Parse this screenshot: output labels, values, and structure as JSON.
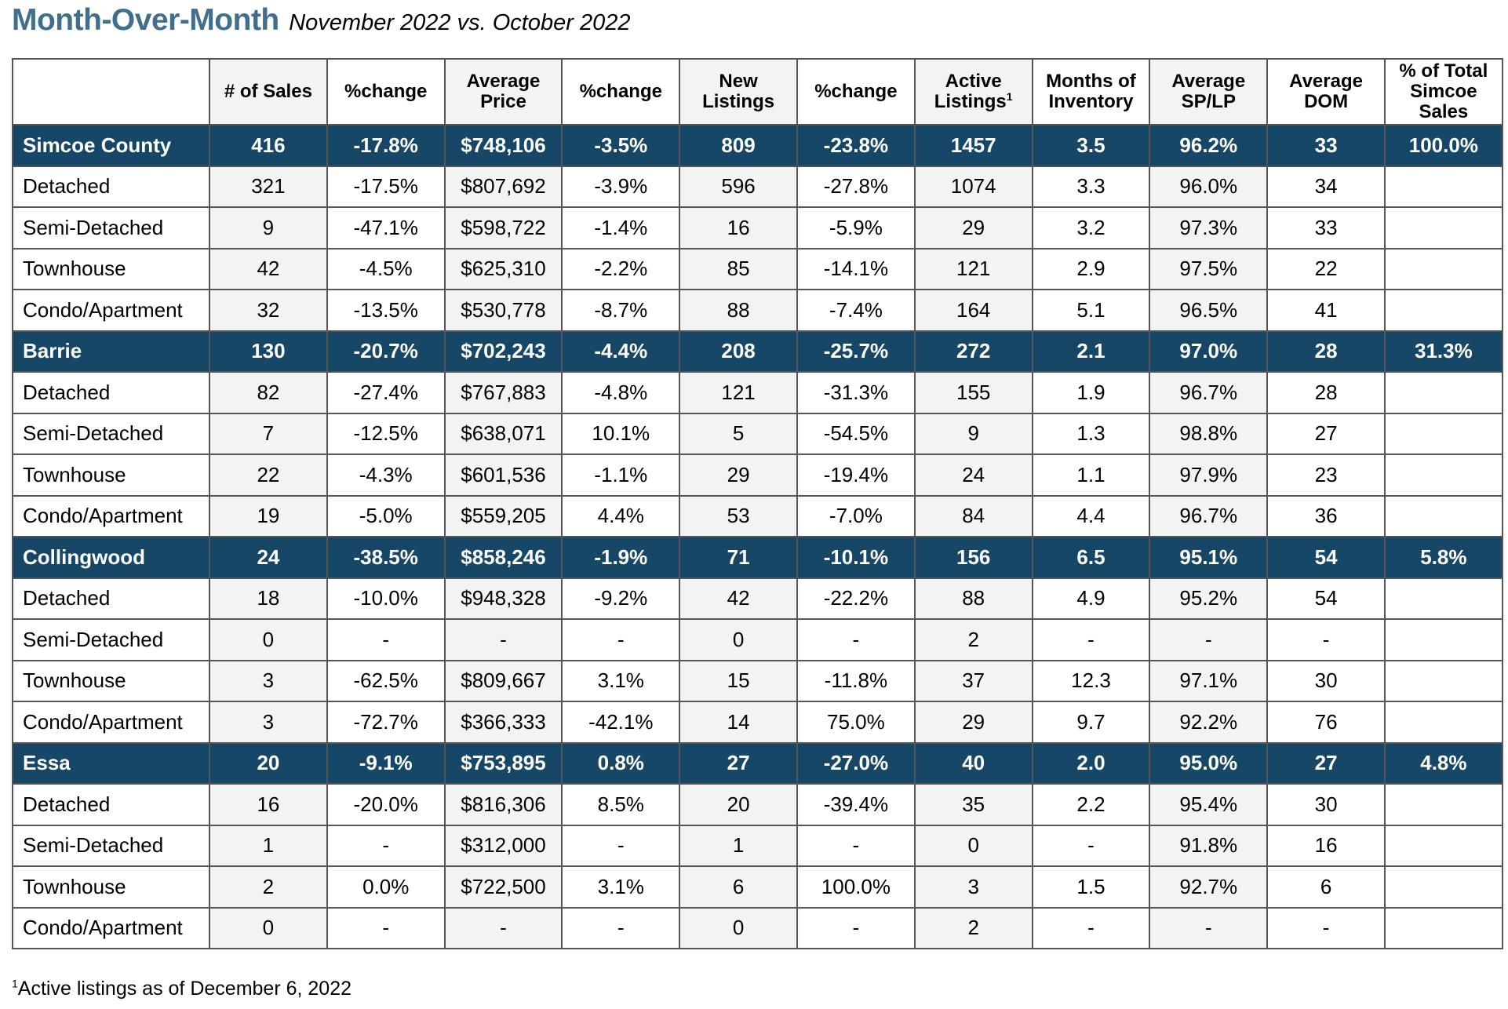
{
  "heading": {
    "title": "Month-Over-Month",
    "subtitle": "November 2022 vs. October 2022"
  },
  "table": {
    "columns": [
      {
        "label": "",
        "sup": ""
      },
      {
        "label": "# of Sales",
        "sup": ""
      },
      {
        "label": "%change",
        "sup": ""
      },
      {
        "label": "Average Price",
        "sup": ""
      },
      {
        "label": "%change",
        "sup": ""
      },
      {
        "label": "New Listings",
        "sup": ""
      },
      {
        "label": "%change",
        "sup": ""
      },
      {
        "label": "Active Listings",
        "sup": "1"
      },
      {
        "label": "Months of Inventory",
        "sup": ""
      },
      {
        "label": "Average SP/LP",
        "sup": ""
      },
      {
        "label": "Average DOM",
        "sup": ""
      },
      {
        "label": "% of Total Simcoe Sales",
        "sup": ""
      }
    ],
    "rows": [
      {
        "region": true,
        "cells": [
          "Simcoe County",
          "416",
          "-17.8%",
          "$748,106",
          "-3.5%",
          "809",
          "-23.8%",
          "1457",
          "3.5",
          "96.2%",
          "33",
          "100.0%"
        ]
      },
      {
        "region": false,
        "cells": [
          "Detached",
          "321",
          "-17.5%",
          "$807,692",
          "-3.9%",
          "596",
          "-27.8%",
          "1074",
          "3.3",
          "96.0%",
          "34",
          ""
        ]
      },
      {
        "region": false,
        "cells": [
          "Semi-Detached",
          "9",
          "-47.1%",
          "$598,722",
          "-1.4%",
          "16",
          "-5.9%",
          "29",
          "3.2",
          "97.3%",
          "33",
          ""
        ]
      },
      {
        "region": false,
        "cells": [
          "Townhouse",
          "42",
          "-4.5%",
          "$625,310",
          "-2.2%",
          "85",
          "-14.1%",
          "121",
          "2.9",
          "97.5%",
          "22",
          ""
        ]
      },
      {
        "region": false,
        "cells": [
          "Condo/Apartment",
          "32",
          "-13.5%",
          "$530,778",
          "-8.7%",
          "88",
          "-7.4%",
          "164",
          "5.1",
          "96.5%",
          "41",
          ""
        ]
      },
      {
        "region": true,
        "cells": [
          "Barrie",
          "130",
          "-20.7%",
          "$702,243",
          "-4.4%",
          "208",
          "-25.7%",
          "272",
          "2.1",
          "97.0%",
          "28",
          "31.3%"
        ]
      },
      {
        "region": false,
        "cells": [
          "Detached",
          "82",
          "-27.4%",
          "$767,883",
          "-4.8%",
          "121",
          "-31.3%",
          "155",
          "1.9",
          "96.7%",
          "28",
          ""
        ]
      },
      {
        "region": false,
        "cells": [
          "Semi-Detached",
          "7",
          "-12.5%",
          "$638,071",
          "10.1%",
          "5",
          "-54.5%",
          "9",
          "1.3",
          "98.8%",
          "27",
          ""
        ]
      },
      {
        "region": false,
        "cells": [
          "Townhouse",
          "22",
          "-4.3%",
          "$601,536",
          "-1.1%",
          "29",
          "-19.4%",
          "24",
          "1.1",
          "97.9%",
          "23",
          ""
        ]
      },
      {
        "region": false,
        "cells": [
          "Condo/Apartment",
          "19",
          "-5.0%",
          "$559,205",
          "4.4%",
          "53",
          "-7.0%",
          "84",
          "4.4",
          "96.7%",
          "36",
          ""
        ]
      },
      {
        "region": true,
        "cells": [
          "Collingwood",
          "24",
          "-38.5%",
          "$858,246",
          "-1.9%",
          "71",
          "-10.1%",
          "156",
          "6.5",
          "95.1%",
          "54",
          "5.8%"
        ]
      },
      {
        "region": false,
        "cells": [
          "Detached",
          "18",
          "-10.0%",
          "$948,328",
          "-9.2%",
          "42",
          "-22.2%",
          "88",
          "4.9",
          "95.2%",
          "54",
          ""
        ]
      },
      {
        "region": false,
        "cells": [
          "Semi-Detached",
          "0",
          "-",
          "-",
          "-",
          "0",
          "-",
          "2",
          "-",
          "-",
          "-",
          ""
        ]
      },
      {
        "region": false,
        "cells": [
          "Townhouse",
          "3",
          "-62.5%",
          "$809,667",
          "3.1%",
          "15",
          "-11.8%",
          "37",
          "12.3",
          "97.1%",
          "30",
          ""
        ]
      },
      {
        "region": false,
        "cells": [
          "Condo/Apartment",
          "3",
          "-72.7%",
          "$366,333",
          "-42.1%",
          "14",
          "75.0%",
          "29",
          "9.7",
          "92.2%",
          "76",
          ""
        ]
      },
      {
        "region": true,
        "cells": [
          "Essa",
          "20",
          "-9.1%",
          "$753,895",
          "0.8%",
          "27",
          "-27.0%",
          "40",
          "2.0",
          "95.0%",
          "27",
          "4.8%"
        ]
      },
      {
        "region": false,
        "cells": [
          "Detached",
          "16",
          "-20.0%",
          "$816,306",
          "8.5%",
          "20",
          "-39.4%",
          "35",
          "2.2",
          "95.4%",
          "30",
          ""
        ]
      },
      {
        "region": false,
        "cells": [
          "Semi-Detached",
          "1",
          "-",
          "$312,000",
          "-",
          "1",
          "-",
          "0",
          "-",
          "91.8%",
          "16",
          ""
        ]
      },
      {
        "region": false,
        "cells": [
          "Townhouse",
          "2",
          "0.0%",
          "$722,500",
          "3.1%",
          "6",
          "100.0%",
          "3",
          "1.5",
          "92.7%",
          "6",
          ""
        ]
      },
      {
        "region": false,
        "cells": [
          "Condo/Apartment",
          "0",
          "-",
          "-",
          "-",
          "0",
          "-",
          "2",
          "-",
          "-",
          "-",
          ""
        ]
      }
    ]
  },
  "footnote": {
    "marker": "1",
    "text": "Active listings as of December 6, 2022"
  },
  "colors": {
    "title": "#3f6f8a",
    "region_band": "#174766",
    "shaded_column": "#f3f3f3",
    "border": "#555555"
  }
}
